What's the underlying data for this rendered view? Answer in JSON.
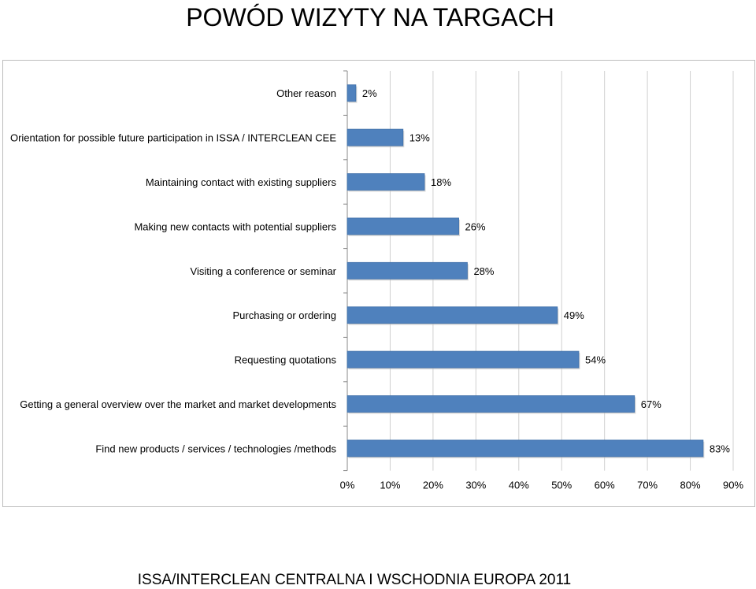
{
  "page": {
    "title": "POWÓD WIZYTY NA TARGACH",
    "footer": "ISSA/INTERCLEAN CENTRALNA I WSCHODNIA EUROPA 2011"
  },
  "colors": {
    "bar_fill": "#4f81bd",
    "bar_stroke": "#3f6fa8",
    "grid": "#d0d0d0",
    "axis": "#8a8a8a"
  },
  "chart_data": {
    "type": "bar",
    "orientation": "horizontal",
    "categories": [
      "Other reason",
      "Orientation for possible future participation  in ISSA / INTERCLEAN  CEE",
      "Maintaining  contact  with existing suppliers",
      "Making new contacts  with  potential  suppliers",
      "Visiting  a conference or seminar",
      "Purchasing or  ordering",
      "Requesting quotations",
      "Getting  a general overview over the  market  and  market  developments",
      "Find new products /  services / technologies /methods"
    ],
    "values": [
      2,
      13,
      18,
      26,
      28,
      49,
      54,
      67,
      83
    ],
    "value_labels": [
      "2%",
      "13%",
      "18%",
      "26%",
      "28%",
      "49%",
      "54%",
      "67%",
      "83%"
    ],
    "xlim": [
      0,
      90
    ],
    "xticks": [
      0,
      10,
      20,
      30,
      40,
      50,
      60,
      70,
      80,
      90
    ],
    "xtick_labels": [
      "0%",
      "10%",
      "20%",
      "30%",
      "40%",
      "50%",
      "60%",
      "70%",
      "80%",
      "90%"
    ],
    "grid": true,
    "legend": "none"
  }
}
